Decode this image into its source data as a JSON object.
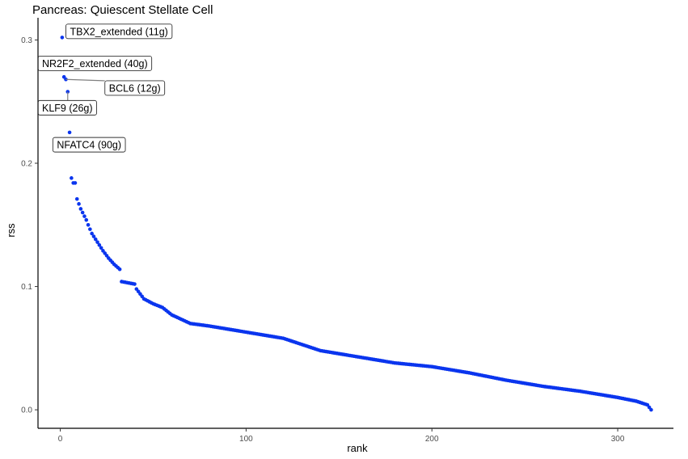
{
  "chart_data": {
    "type": "scatter",
    "title": "Pancreas: Quiescent Stellate Cell",
    "xlabel": "rank",
    "ylabel": "rss",
    "xlim": [
      -12,
      330
    ],
    "ylim": [
      -0.015,
      0.318
    ],
    "xticks": [
      0,
      100,
      200,
      300
    ],
    "yticks": [
      0.0,
      0.1,
      0.2,
      0.3
    ],
    "xtick_labels": [
      "0",
      "100",
      "200",
      "300"
    ],
    "ytick_labels": [
      "0.0",
      "0.1",
      "0.2",
      "0.3"
    ],
    "point_color": "#0a35ee",
    "grid": false,
    "n_points": 318,
    "profile": [
      [
        1,
        0.302
      ],
      [
        2,
        0.27
      ],
      [
        3,
        0.268
      ],
      [
        4,
        0.258
      ],
      [
        5,
        0.225
      ],
      [
        6,
        0.188
      ],
      [
        7,
        0.184
      ],
      [
        8,
        0.184
      ],
      [
        9,
        0.171
      ],
      [
        10,
        0.167
      ],
      [
        11,
        0.163
      ],
      [
        12,
        0.16
      ],
      [
        13,
        0.157
      ],
      [
        14,
        0.154
      ],
      [
        15,
        0.15
      ],
      [
        17,
        0.143
      ],
      [
        20,
        0.136
      ],
      [
        23,
        0.129
      ],
      [
        26,
        0.123
      ],
      [
        29,
        0.118
      ],
      [
        32,
        0.114
      ],
      [
        33,
        0.104
      ],
      [
        40,
        0.102
      ],
      [
        41,
        0.098
      ],
      [
        45,
        0.09
      ],
      [
        50,
        0.086
      ],
      [
        55,
        0.083
      ],
      [
        60,
        0.077
      ],
      [
        70,
        0.07
      ],
      [
        80,
        0.068
      ],
      [
        100,
        0.063
      ],
      [
        120,
        0.058
      ],
      [
        140,
        0.048
      ],
      [
        160,
        0.043
      ],
      [
        180,
        0.038
      ],
      [
        200,
        0.035
      ],
      [
        220,
        0.03
      ],
      [
        240,
        0.024
      ],
      [
        260,
        0.019
      ],
      [
        280,
        0.015
      ],
      [
        300,
        0.01
      ],
      [
        310,
        0.007
      ],
      [
        316,
        0.004
      ],
      [
        318,
        0.0
      ]
    ],
    "labels": [
      {
        "text": "TBX2_extended (11g)",
        "rank": 1,
        "rss": 0.302,
        "box_x": 3,
        "box_y": 0.307
      },
      {
        "text": "NR2F2_extended (40g)",
        "rank": 2,
        "rss": 0.27,
        "box_x": -12,
        "box_y": 0.281
      },
      {
        "text": "BCL6 (12g)",
        "rank": 3,
        "rss": 0.268,
        "box_x": 24,
        "box_y": 0.261
      },
      {
        "text": "KLF9 (26g)",
        "rank": 4,
        "rss": 0.258,
        "box_x": -12,
        "box_y": 0.245
      },
      {
        "text": "NFATC4 (90g)",
        "rank": 5,
        "rss": 0.225,
        "box_x": -4,
        "box_y": 0.215
      }
    ]
  }
}
